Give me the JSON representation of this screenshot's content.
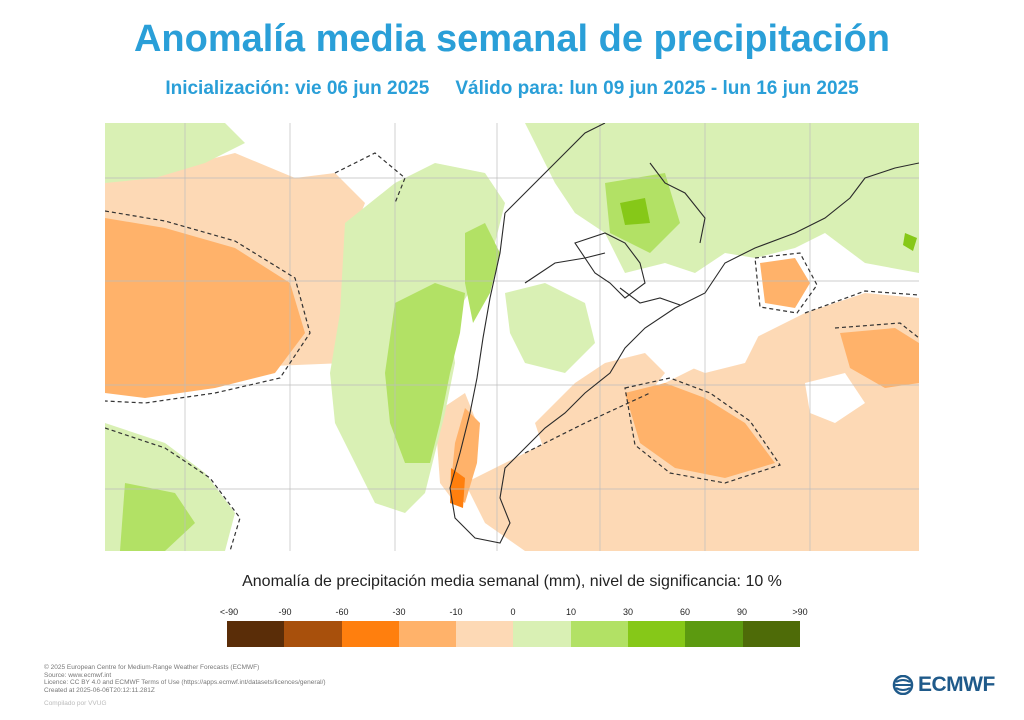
{
  "header": {
    "title": "Anomalía media semanal de precipitación",
    "init": "Inicialización: vie 06 jun 2025",
    "valid": "Válido para: lun 09 jun 2025 - lun 16 jun 2025"
  },
  "legend": {
    "title": "Anomalía de precipitación media semanal (mm), nivel de significancia: 10 %",
    "ticks": [
      "<-90",
      "-90",
      "-60",
      "-30",
      "-10",
      "0",
      "10",
      "30",
      "60",
      "90",
      ">90"
    ],
    "colors": [
      "#5a2d08",
      "#a8500c",
      "#ff7f0e",
      "#ffb26a",
      "#fdd9b5",
      "#ffffff",
      "#d9f0b4",
      "#b2e165",
      "#86c818",
      "#5c9a10",
      "#4e6b08"
    ]
  },
  "credits": {
    "line1": "© 2025 European Centre for Medium-Range Weather Forecasts (ECMWF)",
    "line2": "Source: www.ecmwf.int",
    "line3": "Licence: CC BY 4.0 and ECMWF Terms of Use (https://apps.ecmwf.int/datasets/licences/general/)",
    "line4": "Created at 2025-06-06T20:12:11.281Z",
    "line5": "Compilado por VVUG"
  },
  "logo": {
    "text": "ECMWF",
    "icon": "ecmwf-logo-icon"
  }
}
